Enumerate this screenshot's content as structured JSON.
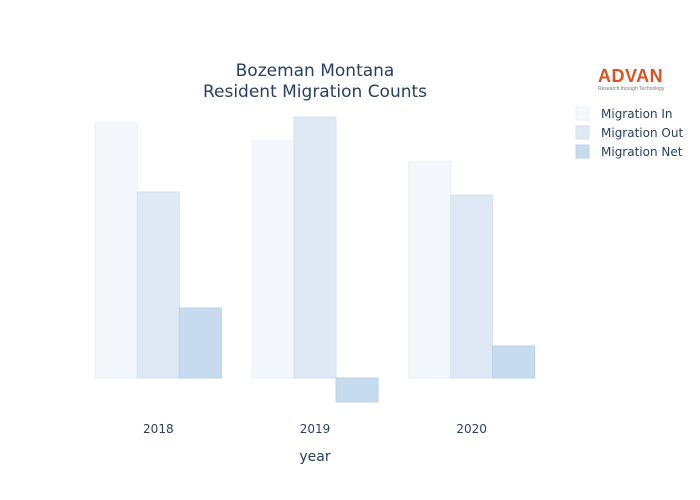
{
  "chart_data": {
    "type": "bar",
    "title_lines": [
      "Bozeman Montana",
      "Resident Migration Counts"
    ],
    "xlabel": "year",
    "ylabel": "",
    "categories": [
      "2018",
      "2019",
      "2020"
    ],
    "series": [
      {
        "name": "Migration In",
        "values": [
          255,
          237,
          216
        ],
        "color": "#f4f8fc",
        "stroke": "#e8eff8"
      },
      {
        "name": "Migration Out",
        "values": [
          186,
          261,
          183
        ],
        "color": "#dfe9f5",
        "stroke": "#d3e1f1"
      },
      {
        "name": "Migration Net",
        "values": [
          70,
          -24,
          32
        ],
        "color": "#c7dbef",
        "stroke": "#b9d1ea"
      }
    ],
    "ylim": [
      -26,
      262
    ],
    "yaxis_visible": false,
    "grid": false,
    "legend_position": "top-right"
  },
  "logo": {
    "word": "ADVAN",
    "tagline": "Research through Technology"
  }
}
